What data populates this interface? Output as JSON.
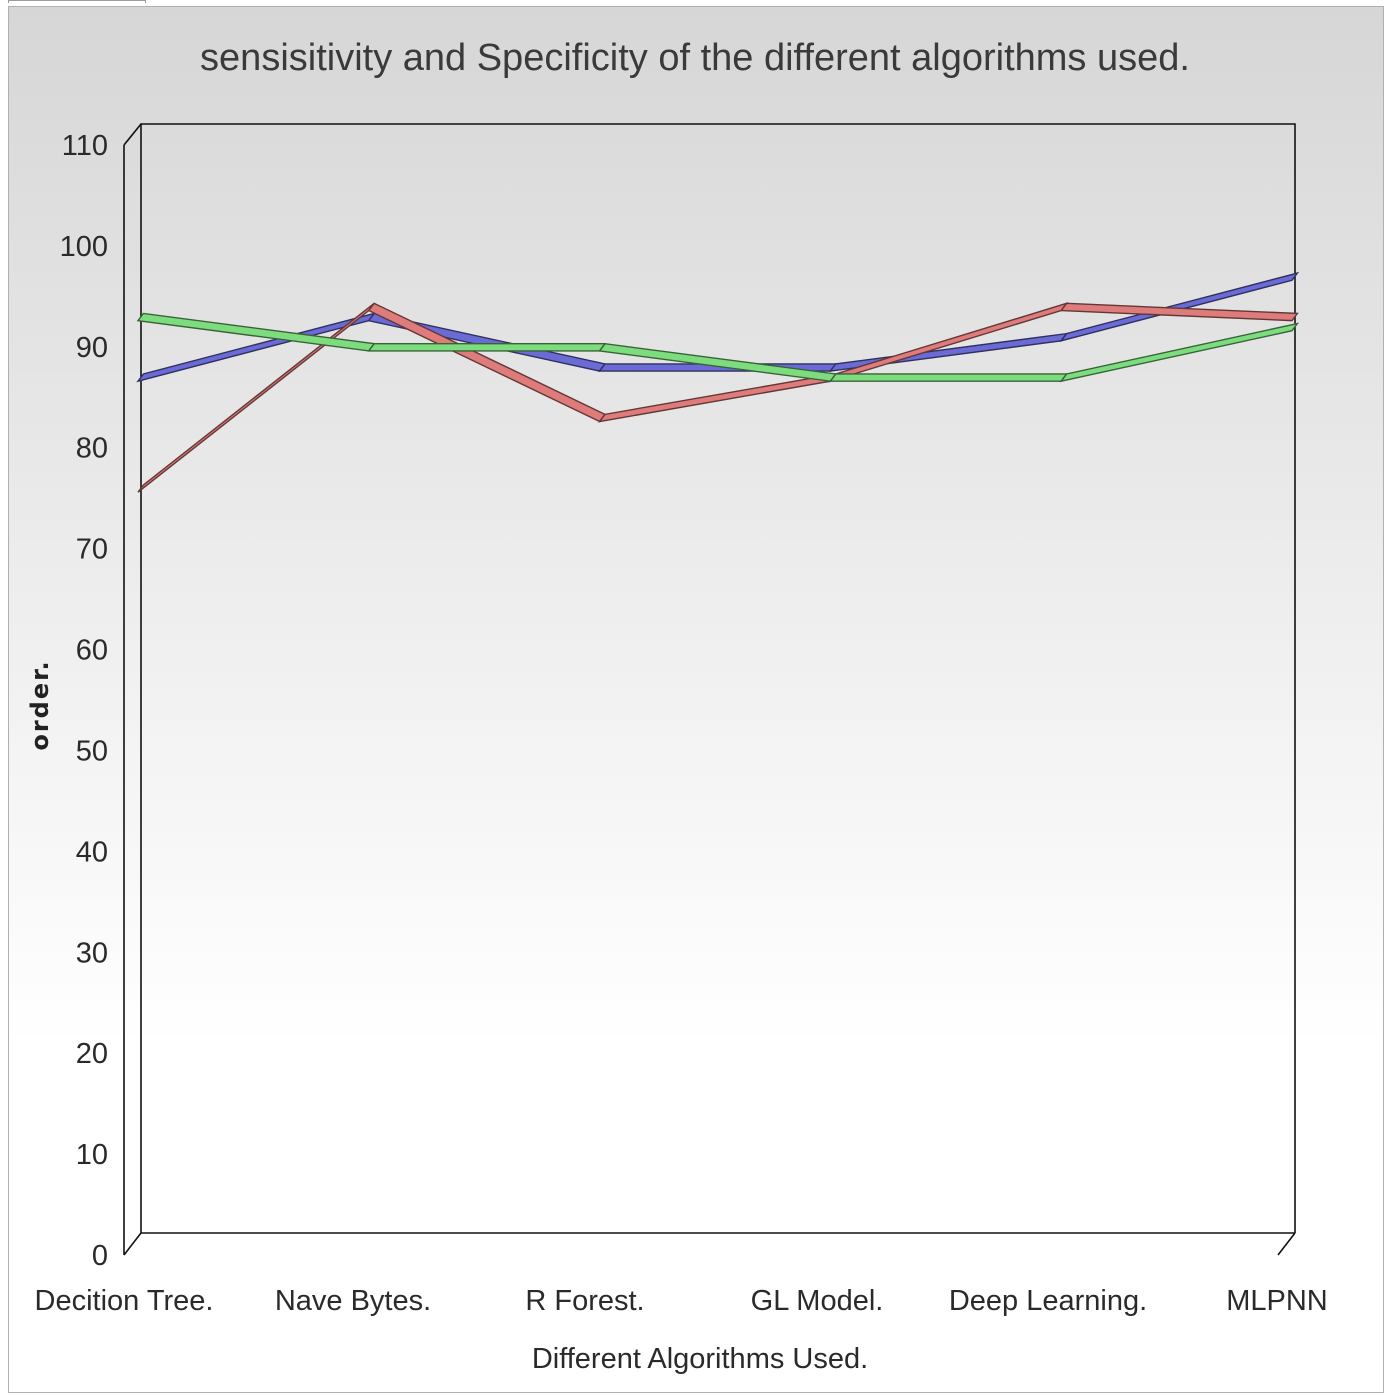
{
  "chart_data": {
    "type": "line",
    "title": "sensisitivity and Specificity of the different algorithms used.",
    "xlabel": "Different Algorithms Used.",
    "ylabel": "order.",
    "categories": [
      "Decition Tree.",
      "Nave Bytes.",
      "R Forest.",
      "GL Model.",
      "Deep Learning.",
      "MLPNN"
    ],
    "ylim": [
      0,
      110
    ],
    "yticks": [
      "0",
      "10",
      "20",
      "30",
      "40",
      "50",
      "60",
      "70",
      "80",
      "90",
      "100",
      "110"
    ],
    "grid": false,
    "series": [
      {
        "color": "#6b6bd6",
        "values": [
          86,
          92,
          87,
          87,
          90,
          96
        ]
      },
      {
        "color": "#de7b7b",
        "values": [
          75,
          93,
          82,
          86,
          93,
          92
        ]
      },
      {
        "color": "#7ddc7d",
        "values": [
          92,
          89,
          89,
          86,
          86,
          91
        ]
      }
    ]
  }
}
